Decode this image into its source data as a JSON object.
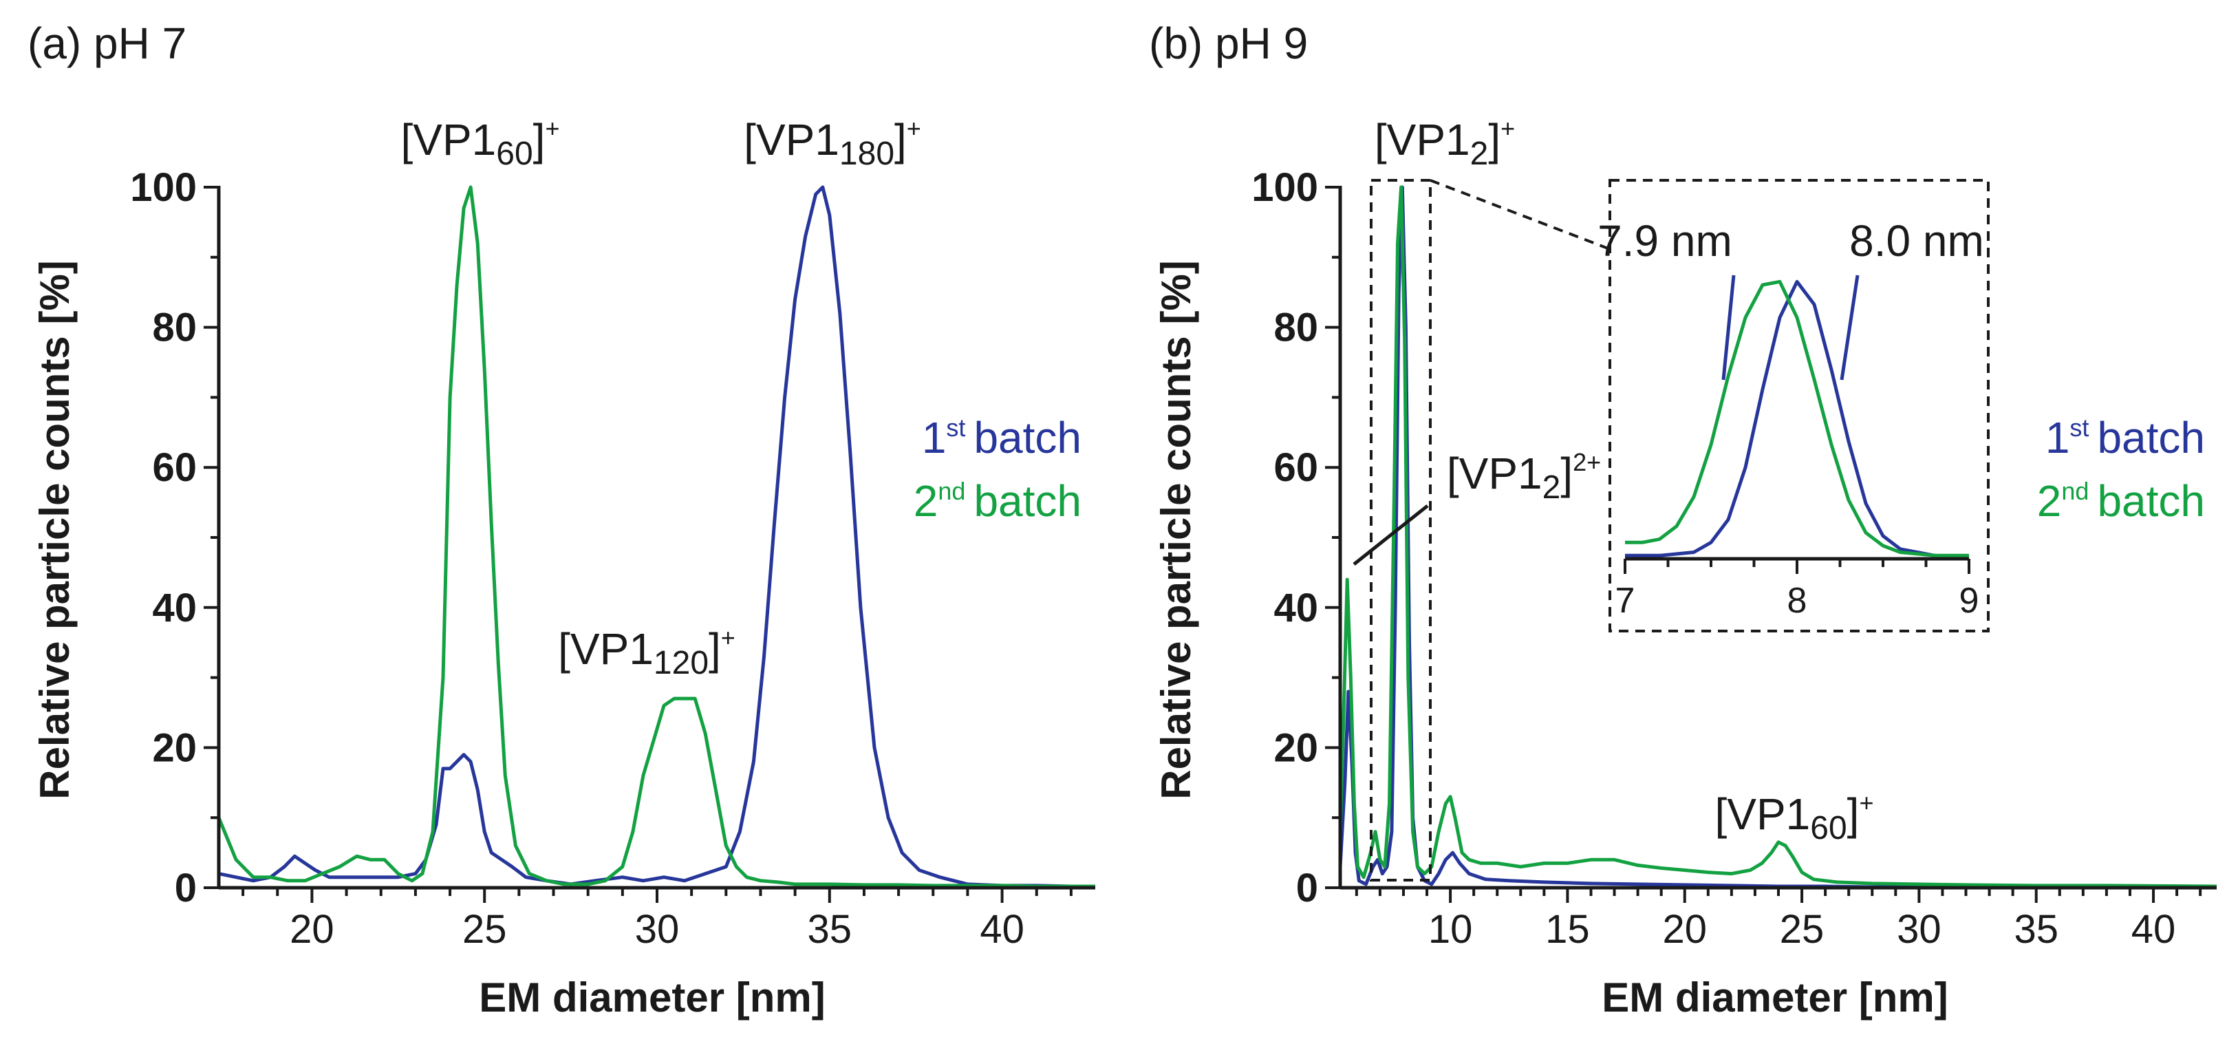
{
  "colors": {
    "batch1": "#27369a",
    "batch2": "#13a142",
    "axis": "#1a1a1a"
  },
  "legend": {
    "batch1": {
      "num": "1",
      "sup": "st",
      "text": "batch"
    },
    "batch2": {
      "num": "2",
      "sup": "nd",
      "text": "batch"
    }
  },
  "chart_data": [
    {
      "panel": "a",
      "type": "line",
      "title": "(a) pH 7",
      "xlabel": "EM diameter [nm]",
      "ylabel": "Relative particle counts [%]",
      "xlim": [
        17.3,
        42.7
      ],
      "ylim": [
        0,
        100
      ],
      "x_ticks": [
        20,
        25,
        30,
        35,
        40
      ],
      "y_ticks": [
        0,
        20,
        40,
        60,
        80,
        100
      ],
      "annotations": [
        {
          "pre": "[VP1",
          "sub": "60",
          "post": "]",
          "sup": "+"
        },
        {
          "pre": "[VP1",
          "sub": "180",
          "post": "]",
          "sup": "+"
        },
        {
          "pre": "[VP1",
          "sub": "120",
          "post": "]",
          "sup": "+"
        }
      ],
      "series": [
        {
          "name": "1st batch",
          "x": [
            17.3,
            17.8,
            18.3,
            18.8,
            19.2,
            19.5,
            19.8,
            20.1,
            20.5,
            21,
            21.5,
            22,
            22.5,
            23,
            23.3,
            23.6,
            23.8,
            24.0,
            24.2,
            24.4,
            24.6,
            24.8,
            25.0,
            25.2,
            25.5,
            25.8,
            26.2,
            26.8,
            27.5,
            28.2,
            29,
            29.6,
            30.2,
            30.8,
            31.4,
            32,
            32.4,
            32.8,
            33.1,
            33.4,
            33.7,
            34.0,
            34.3,
            34.6,
            34.8,
            35.0,
            35.3,
            35.6,
            35.9,
            36.3,
            36.7,
            37.1,
            37.6,
            38.2,
            39,
            40,
            41,
            42,
            42.7
          ],
          "y": [
            2,
            1.5,
            1,
            1.5,
            3,
            4.5,
            3.5,
            2.5,
            1.5,
            1.5,
            1.5,
            1.5,
            1.5,
            2,
            4,
            9,
            17,
            17,
            18,
            19,
            18,
            14,
            8,
            5,
            4,
            3,
            1.5,
            1,
            0.5,
            1,
            1.5,
            1,
            1.5,
            1,
            2,
            3,
            8,
            18,
            33,
            52,
            70,
            84,
            93,
            99,
            100,
            96,
            82,
            62,
            40,
            20,
            10,
            5,
            2.5,
            1.5,
            0.5,
            0.3,
            0.3,
            0.2,
            0.1
          ]
        },
        {
          "name": "2nd batch",
          "x": [
            17.3,
            17.8,
            18.3,
            18.8,
            19.3,
            19.8,
            20.3,
            20.8,
            21.3,
            21.7,
            22.1,
            22.5,
            22.9,
            23.2,
            23.5,
            23.8,
            24.0,
            24.2,
            24.4,
            24.6,
            24.8,
            25.0,
            25.2,
            25.4,
            25.6,
            25.9,
            26.3,
            26.8,
            27.3,
            28,
            28.5,
            29,
            29.3,
            29.6,
            29.9,
            30.2,
            30.5,
            30.8,
            31.1,
            31.4,
            31.7,
            32,
            32.3,
            32.6,
            33,
            33.5,
            34,
            35,
            36,
            37,
            38,
            39,
            40,
            41,
            42,
            42.7
          ],
          "y": [
            10,
            4,
            1.5,
            1.5,
            1,
            1,
            2,
            3,
            4.5,
            4,
            4,
            2,
            1,
            2,
            8,
            30,
            70,
            86,
            97,
            100,
            92,
            74,
            52,
            32,
            16,
            6,
            2,
            1,
            0.5,
            0.5,
            1,
            3,
            8,
            16,
            21,
            26,
            27,
            27,
            27,
            22,
            14,
            6,
            3,
            1.5,
            1,
            0.8,
            0.5,
            0.5,
            0.4,
            0.4,
            0.3,
            0.3,
            0.3,
            0.2,
            0.2,
            0.2
          ]
        }
      ]
    },
    {
      "panel": "b",
      "type": "line",
      "title": "(b) pH 9",
      "xlabel": "EM diameter [nm]",
      "ylabel": "Relative particle counts [%]",
      "xlim": [
        5.3,
        42.7
      ],
      "ylim": [
        0,
        100
      ],
      "x_ticks": [
        10,
        15,
        20,
        25,
        30,
        35,
        40
      ],
      "y_ticks": [
        0,
        20,
        40,
        60,
        80,
        100
      ],
      "annotations": [
        {
          "pre": "[VP1",
          "sub": "2",
          "post": "]",
          "sup": "+"
        },
        {
          "pre": "[VP1",
          "sub": "2",
          "post": "]",
          "sup": "2+"
        },
        {
          "pre": "[VP1",
          "sub": "60",
          "post": "]",
          "sup": "+"
        }
      ],
      "series": [
        {
          "name": "1st batch",
          "x": [
            5.3,
            5.5,
            5.65,
            5.8,
            5.95,
            6.1,
            6.4,
            6.7,
            6.9,
            7.1,
            7.3,
            7.5,
            7.65,
            7.8,
            7.95,
            8.1,
            8.25,
            8.4,
            8.6,
            8.9,
            9.2,
            9.5,
            9.8,
            10.1,
            10.4,
            10.8,
            11.5,
            12.5,
            14,
            16,
            18,
            20,
            22,
            24,
            26,
            28,
            30,
            33,
            36,
            40,
            42.7
          ],
          "y": [
            3,
            15,
            28,
            18,
            5,
            1,
            0.5,
            3,
            4,
            2,
            3,
            8,
            40,
            85,
            100,
            80,
            35,
            10,
            3,
            1,
            0.5,
            2,
            4,
            5,
            3.5,
            2,
            1.2,
            1,
            0.8,
            0.6,
            0.5,
            0.4,
            0.3,
            0.2,
            0.2,
            0.1,
            0.1,
            0.1,
            0.1,
            0.1,
            0.1
          ]
        },
        {
          "name": "2nd batch",
          "x": [
            5.3,
            5.45,
            5.6,
            5.75,
            5.9,
            6.05,
            6.3,
            6.6,
            6.8,
            7.0,
            7.2,
            7.4,
            7.6,
            7.75,
            7.9,
            8.05,
            8.2,
            8.4,
            8.6,
            8.9,
            9.2,
            9.5,
            9.8,
            10.0,
            10.2,
            10.5,
            10.8,
            11.3,
            12,
            13,
            14,
            15,
            16,
            17,
            18,
            19,
            20,
            21,
            22,
            22.8,
            23.3,
            23.7,
            24.0,
            24.3,
            24.6,
            25.0,
            25.5,
            26.5,
            28,
            30,
            32,
            35,
            38,
            42.7
          ],
          "y": [
            8,
            25,
            44,
            30,
            12,
            3,
            1.5,
            5,
            8,
            4,
            3,
            12,
            55,
            92,
            100,
            78,
            30,
            8,
            3,
            2,
            3,
            8,
            12,
            13,
            10,
            5,
            4,
            3.5,
            3.5,
            3,
            3.5,
            3.5,
            4,
            4,
            3.2,
            2.8,
            2.5,
            2.2,
            2,
            2.5,
            3.5,
            5,
            6.5,
            6,
            4.5,
            2.2,
            1.2,
            0.8,
            0.6,
            0.5,
            0.4,
            0.3,
            0.3,
            0.2
          ]
        }
      ],
      "inset": {
        "xlim": [
          7,
          9
        ],
        "x_ticks": [
          7,
          8,
          9
        ],
        "annotations": [
          "7.9 nm",
          "8.0 nm"
        ],
        "series": [
          {
            "name": "1st batch",
            "x": [
              7,
              7.2,
              7.4,
              7.5,
              7.6,
              7.7,
              7.8,
              7.9,
              8.0,
              8.1,
              8.2,
              8.3,
              8.4,
              8.5,
              8.6,
              8.8,
              9
            ],
            "y": [
              1,
              1,
              2,
              5,
              12,
              28,
              52,
              74,
              85,
              78,
              58,
              36,
              17,
              7,
              3,
              1,
              0.5
            ]
          },
          {
            "name": "2nd batch",
            "x": [
              7,
              7.1,
              7.2,
              7.3,
              7.4,
              7.5,
              7.6,
              7.7,
              7.8,
              7.9,
              8.0,
              8.1,
              8.2,
              8.3,
              8.4,
              8.5,
              8.6,
              8.8,
              9
            ],
            "y": [
              5,
              5,
              6,
              10,
              19,
              35,
              56,
              74,
              84,
              85,
              74,
              55,
              35,
              18,
              8,
              4,
              2,
              1,
              1
            ]
          }
        ]
      }
    }
  ]
}
